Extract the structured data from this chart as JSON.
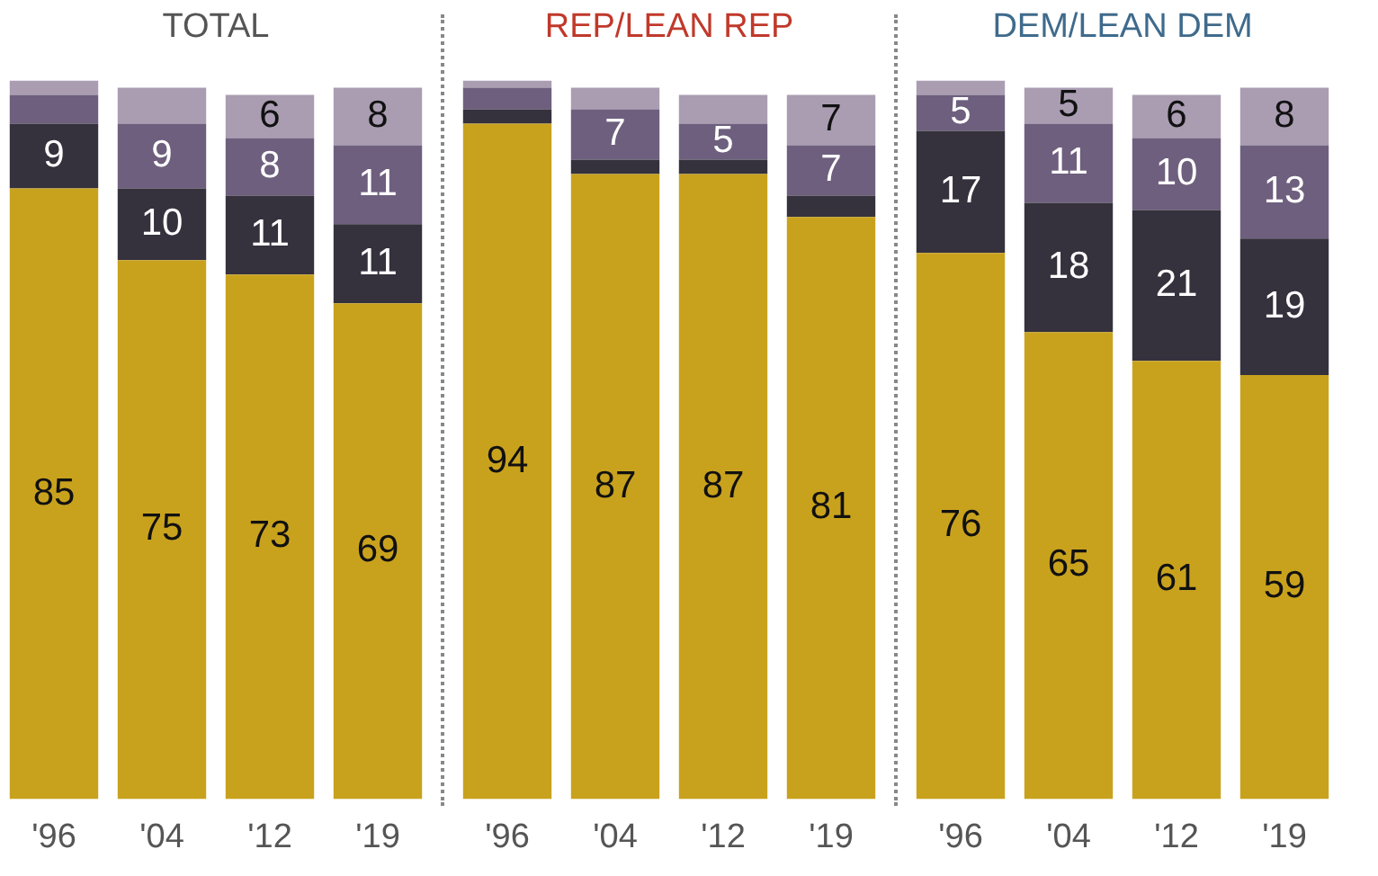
{
  "chart_data": [
    {
      "type": "bar",
      "title": "TOTAL",
      "categories": [
        "'96",
        "'04",
        "'12",
        "'19"
      ],
      "stacked": true,
      "ylim": [
        0,
        100
      ],
      "tick_labels": "x",
      "grid": false,
      "legend": false,
      "series": [
        {
          "color": "#c9a21d",
          "values": [
            85,
            75,
            73,
            69
          ],
          "value_labels": [
            "85",
            "75",
            "73",
            "69"
          ]
        },
        {
          "color": "#35313d",
          "values": [
            9,
            10,
            11,
            11
          ],
          "value_labels": [
            "9",
            "10",
            "11",
            "11"
          ]
        },
        {
          "color": "#6e5f7e",
          "values": [
            4,
            9,
            8,
            11
          ],
          "value_labels": [
            null,
            "9",
            "8",
            "11"
          ]
        },
        {
          "color": "#aa9db2",
          "values": [
            2,
            5,
            6,
            8
          ],
          "value_labels": [
            null,
            null,
            "6",
            "8"
          ]
        }
      ]
    },
    {
      "type": "bar",
      "title": "REP/LEAN REP",
      "categories": [
        "'96",
        "'04",
        "'12",
        "'19"
      ],
      "stacked": true,
      "ylim": [
        0,
        100
      ],
      "tick_labels": "x",
      "grid": false,
      "legend": false,
      "series": [
        {
          "color": "#c9a21d",
          "values": [
            94,
            87,
            87,
            81
          ],
          "value_labels": [
            "94",
            "87",
            "87",
            "81"
          ]
        },
        {
          "color": "#35313d",
          "values": [
            2,
            2,
            2,
            3
          ],
          "value_labels": [
            null,
            null,
            null,
            null
          ]
        },
        {
          "color": "#6e5f7e",
          "values": [
            3,
            7,
            5,
            7
          ],
          "value_labels": [
            null,
            "7",
            "5",
            "7"
          ]
        },
        {
          "color": "#aa9db2",
          "values": [
            1,
            3,
            4,
            7
          ],
          "value_labels": [
            null,
            null,
            null,
            "7"
          ]
        }
      ]
    },
    {
      "type": "bar",
      "title": "DEM/LEAN DEM",
      "categories": [
        "'96",
        "'04",
        "'12",
        "'19"
      ],
      "stacked": true,
      "ylim": [
        0,
        100
      ],
      "tick_labels": "x",
      "grid": false,
      "legend": false,
      "series": [
        {
          "color": "#c9a21d",
          "values": [
            76,
            65,
            61,
            59
          ],
          "value_labels": [
            "76",
            "65",
            "61",
            "59"
          ]
        },
        {
          "color": "#35313d",
          "values": [
            17,
            18,
            21,
            19
          ],
          "value_labels": [
            "17",
            "18",
            "21",
            "19"
          ]
        },
        {
          "color": "#6e5f7e",
          "values": [
            5,
            11,
            10,
            13
          ],
          "value_labels": [
            "5",
            "11",
            "10",
            "13"
          ]
        },
        {
          "color": "#aa9db2",
          "values": [
            2,
            5,
            6,
            8
          ],
          "value_labels": [
            null,
            "5",
            "6",
            "8"
          ]
        }
      ]
    }
  ]
}
